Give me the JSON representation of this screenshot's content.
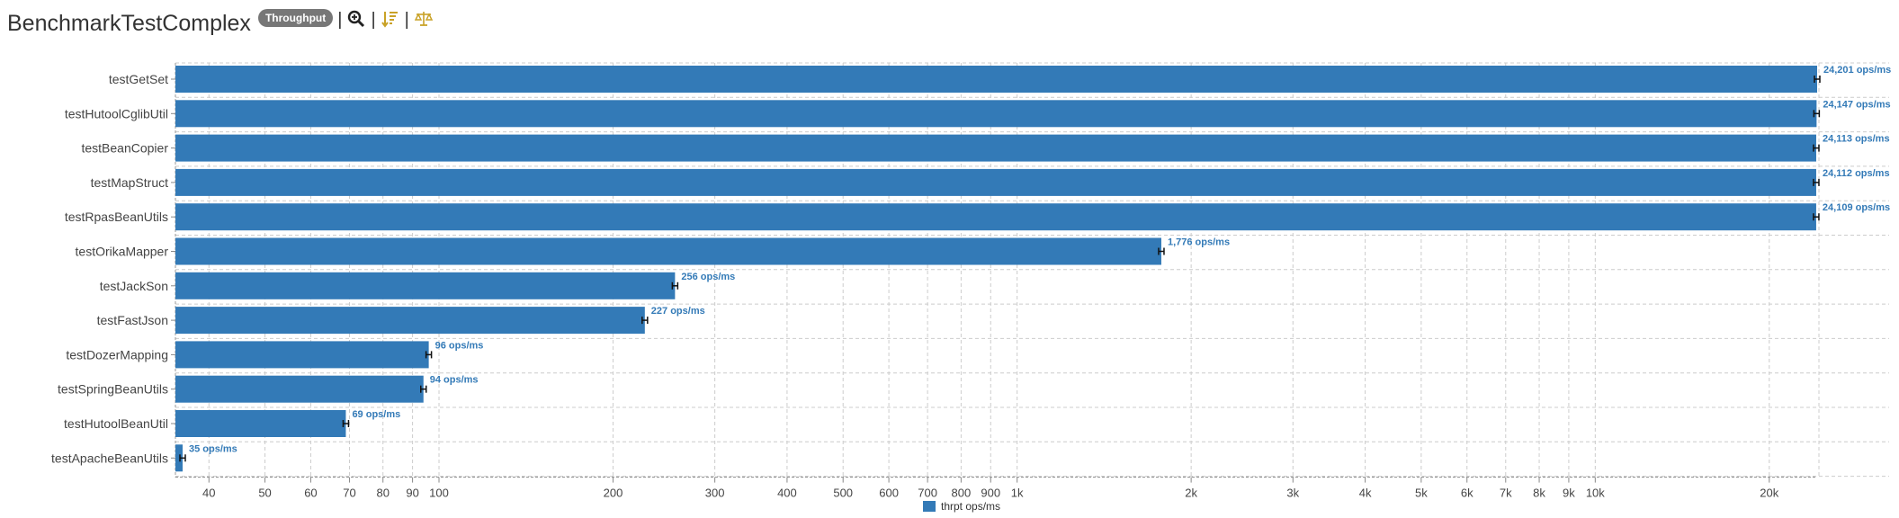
{
  "header": {
    "title": "BenchmarkTestComplex",
    "mode_badge": "Throughput",
    "separator": "|",
    "tools": [
      "zoom-icon",
      "sort-icon",
      "balance-icon"
    ]
  },
  "chart_data": {
    "type": "bar",
    "orientation": "horizontal",
    "x_scale": "log",
    "xlim": [
      35,
      24201
    ],
    "value_suffix": " ops/ms",
    "bar_color": "#337ab7",
    "grid": true,
    "legend_position": "bottom-center",
    "categories": [
      "testGetSet",
      "testHutoolCglibUtil",
      "testBeanCopier",
      "testMapStruct",
      "testRpasBeanUtils",
      "testOrikaMapper",
      "testJackSon",
      "testFastJson",
      "testDozerMapping",
      "testSpringBeanUtils",
      "testHutoolBeanUtil",
      "testApacheBeanUtils"
    ],
    "series": [
      {
        "name": "thrpt ops/ms",
        "values": [
          24201,
          24147,
          24113,
          24112,
          24109,
          1776,
          256,
          227,
          96,
          94,
          69,
          35
        ],
        "labels": [
          "24,201 ops/ms",
          "24,147 ops/ms",
          "24,113 ops/ms",
          "24,112 ops/ms",
          "24,109 ops/ms",
          "1,776 ops/ms",
          "256 ops/ms",
          "227 ops/ms",
          "96 ops/ms",
          "94 ops/ms",
          "69 ops/ms",
          "35 ops/ms"
        ]
      }
    ],
    "x_ticks": [
      {
        "v": 40,
        "label": "40"
      },
      {
        "v": 50,
        "label": "50"
      },
      {
        "v": 60,
        "label": "60"
      },
      {
        "v": 70,
        "label": "70"
      },
      {
        "v": 80,
        "label": "80"
      },
      {
        "v": 90,
        "label": "90"
      },
      {
        "v": 100,
        "label": "100"
      },
      {
        "v": 200,
        "label": "200"
      },
      {
        "v": 300,
        "label": "300"
      },
      {
        "v": 400,
        "label": "400"
      },
      {
        "v": 500,
        "label": "500"
      },
      {
        "v": 600,
        "label": "600"
      },
      {
        "v": 700,
        "label": "700"
      },
      {
        "v": 800,
        "label": "800"
      },
      {
        "v": 900,
        "label": "900"
      },
      {
        "v": 1000,
        "label": "1k"
      },
      {
        "v": 2000,
        "label": "2k"
      },
      {
        "v": 3000,
        "label": "3k"
      },
      {
        "v": 4000,
        "label": "4k"
      },
      {
        "v": 5000,
        "label": "5k"
      },
      {
        "v": 6000,
        "label": "6k"
      },
      {
        "v": 7000,
        "label": "7k"
      },
      {
        "v": 8000,
        "label": "8k"
      },
      {
        "v": 9000,
        "label": "9k"
      },
      {
        "v": 10000,
        "label": "10k"
      },
      {
        "v": 20000,
        "label": "20k"
      }
    ]
  }
}
